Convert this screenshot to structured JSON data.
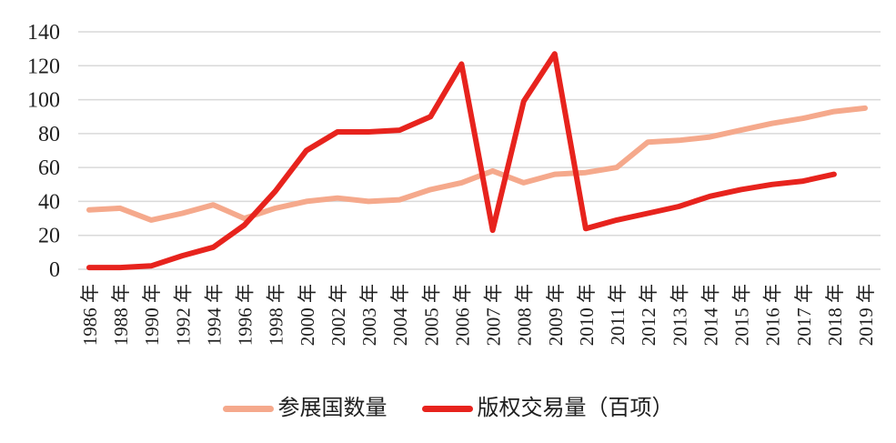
{
  "chart_data": {
    "type": "line",
    "title": "",
    "xlabel": "",
    "ylabel": "",
    "ylim": [
      0,
      140
    ],
    "yticks": [
      0,
      20,
      40,
      60,
      80,
      100,
      120,
      140
    ],
    "grid": true,
    "legend_position": "bottom",
    "categories": [
      "1986 年",
      "1988 年",
      "1990 年",
      "1992 年",
      "1994 年",
      "1996 年",
      "1998 年",
      "2000 年",
      "2002 年",
      "2003 年",
      "2004 年",
      "2005 年",
      "2006 年",
      "2007 年",
      "2008 年",
      "2009 年",
      "2010 年",
      "2011 年",
      "2012 年",
      "2013 年",
      "2014 年",
      "2015 年",
      "2016 年",
      "2017 年",
      "2018 年",
      "2019 年"
    ],
    "series": [
      {
        "name": "参展国数量",
        "color": "#f5a98c",
        "values": [
          35,
          36,
          29,
          33,
          38,
          30,
          36,
          40,
          42,
          40,
          41,
          47,
          51,
          58,
          51,
          56,
          57,
          60,
          75,
          76,
          78,
          82,
          86,
          89,
          93,
          95
        ]
      },
      {
        "name": "版权交易量（百项）",
        "color": "#e7231d",
        "values": [
          1,
          1,
          2,
          8,
          13,
          26,
          46,
          70,
          81,
          81,
          82,
          90,
          121,
          23,
          99,
          127,
          24,
          29,
          33,
          37,
          43,
          47,
          50,
          52,
          56,
          null
        ]
      }
    ],
    "colors": {
      "gridline": "#d9d9d9",
      "axis_text": "#1f1f1f",
      "background": "#ffffff"
    }
  }
}
